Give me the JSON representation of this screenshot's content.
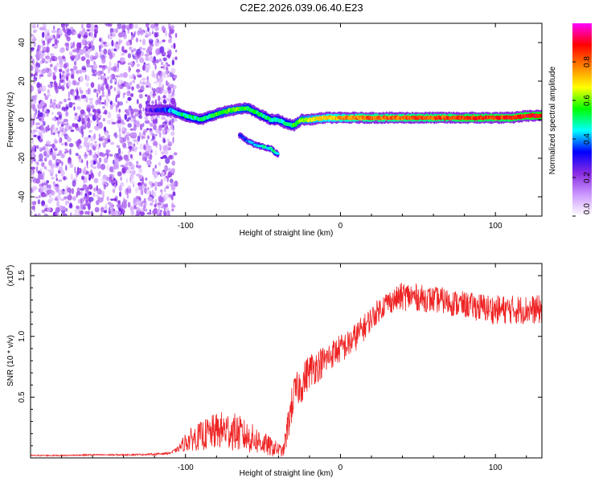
{
  "title": "C2E2.2026.039.06.40.E23",
  "chart_data": [
    {
      "type": "heatmap",
      "xlabel": "Height of straight line (km)",
      "ylabel": "Frequency (Hz)",
      "xlim": [
        -200,
        130
      ],
      "ylim": [
        -50,
        50
      ],
      "xticks": [
        -100,
        0,
        100
      ],
      "yticks": [
        -40,
        -20,
        0,
        20,
        40
      ],
      "colorbar": {
        "label": "Normalized spectral amplitude",
        "range": [
          0,
          1
        ],
        "ticks": [
          0.0,
          0.2,
          0.4,
          0.6,
          0.8
        ],
        "tick_labels": [
          "0.0",
          "0.2",
          "0.4",
          "0.6",
          "0.8"
        ],
        "colormap": [
          "#ffffff",
          "#cc99ff",
          "#8a2be2",
          "#0000ff",
          "#00ffff",
          "#00ff00",
          "#ffff00",
          "#ff8000",
          "#ff0000",
          "#ff00ff"
        ]
      },
      "noise_region": {
        "x_from": -200,
        "x_to": -110,
        "level": 0.2
      },
      "main_trace": {
        "x": [
          -125,
          -110,
          -100,
          -90,
          -80,
          -70,
          -60,
          -50,
          -45,
          -40,
          -35,
          -30,
          -25,
          -20,
          -10,
          0,
          10,
          20,
          30,
          40,
          50,
          60,
          70,
          80,
          90,
          100,
          110,
          120,
          130
        ],
        "y": [
          5,
          5,
          2,
          0,
          3,
          5,
          6,
          2,
          0,
          0,
          -2,
          -3,
          0,
          0,
          1,
          1,
          1,
          1,
          1,
          1,
          1,
          1,
          1,
          1,
          1,
          1,
          1,
          2,
          2
        ],
        "amplitude": [
          0.2,
          0.4,
          0.5,
          0.5,
          0.55,
          0.6,
          0.55,
          0.5,
          0.5,
          0.45,
          0.5,
          0.55,
          0.6,
          0.65,
          0.7,
          0.75,
          0.78,
          0.8,
          0.8,
          0.8,
          0.82,
          0.82,
          0.82,
          0.85,
          0.85,
          0.85,
          0.85,
          0.88,
          0.9
        ]
      },
      "branch_trace": {
        "x": [
          -65,
          -60,
          -55,
          -50,
          -45,
          -42,
          -40
        ],
        "y": [
          -8,
          -11,
          -13,
          -14,
          -15,
          -17,
          -18
        ],
        "amplitude": [
          0.3,
          0.35,
          0.4,
          0.45,
          0.5,
          0.5,
          0.45
        ]
      }
    },
    {
      "type": "line",
      "xlabel": "Height of straight line (km)",
      "ylabel": "SNR (10 * v/v)",
      "y_multiplier_label": "(x10",
      "y_multiplier_exp": "4",
      "xlim": [
        -200,
        130
      ],
      "ylim": [
        0,
        1.6
      ],
      "xticks": [
        -100,
        0,
        100
      ],
      "yticks": [
        0.5,
        1.0,
        1.5
      ],
      "series": [
        {
          "name": "SNR",
          "color": "#ee2222",
          "x": [
            -200,
            -180,
            -160,
            -140,
            -120,
            -110,
            -105,
            -100,
            -95,
            -90,
            -85,
            -80,
            -75,
            -70,
            -65,
            -60,
            -55,
            -50,
            -45,
            -40,
            -37,
            -35,
            -32,
            -30,
            -27,
            -25,
            -22,
            -20,
            -15,
            -10,
            -5,
            0,
            5,
            10,
            15,
            20,
            25,
            30,
            35,
            40,
            45,
            50,
            55,
            60,
            65,
            70,
            75,
            80,
            85,
            90,
            95,
            100,
            105,
            110,
            115,
            120,
            125,
            130
          ],
          "y": [
            0.02,
            0.02,
            0.025,
            0.025,
            0.03,
            0.04,
            0.07,
            0.13,
            0.16,
            0.18,
            0.2,
            0.22,
            0.23,
            0.22,
            0.2,
            0.17,
            0.15,
            0.12,
            0.09,
            0.07,
            0.05,
            0.18,
            0.4,
            0.52,
            0.58,
            0.6,
            0.68,
            0.72,
            0.76,
            0.8,
            0.86,
            0.9,
            0.93,
            1.0,
            1.07,
            1.15,
            1.22,
            1.28,
            1.3,
            1.33,
            1.33,
            1.32,
            1.31,
            1.3,
            1.3,
            1.28,
            1.27,
            1.26,
            1.25,
            1.24,
            1.23,
            1.22,
            1.22,
            1.22,
            1.22,
            1.22,
            1.22,
            1.22
          ],
          "noise": [
            0.005,
            0.005,
            0.006,
            0.006,
            0.008,
            0.01,
            0.02,
            0.08,
            0.1,
            0.12,
            0.14,
            0.15,
            0.16,
            0.16,
            0.15,
            0.13,
            0.12,
            0.1,
            0.08,
            0.06,
            0.04,
            0.12,
            0.15,
            0.15,
            0.15,
            0.15,
            0.15,
            0.15,
            0.14,
            0.13,
            0.12,
            0.12,
            0.12,
            0.12,
            0.11,
            0.1,
            0.1,
            0.1,
            0.1,
            0.12,
            0.12,
            0.11,
            0.11,
            0.11,
            0.11,
            0.11,
            0.11,
            0.11,
            0.11,
            0.12,
            0.12,
            0.12,
            0.12,
            0.12,
            0.12,
            0.12,
            0.12,
            0.12
          ]
        }
      ]
    }
  ]
}
